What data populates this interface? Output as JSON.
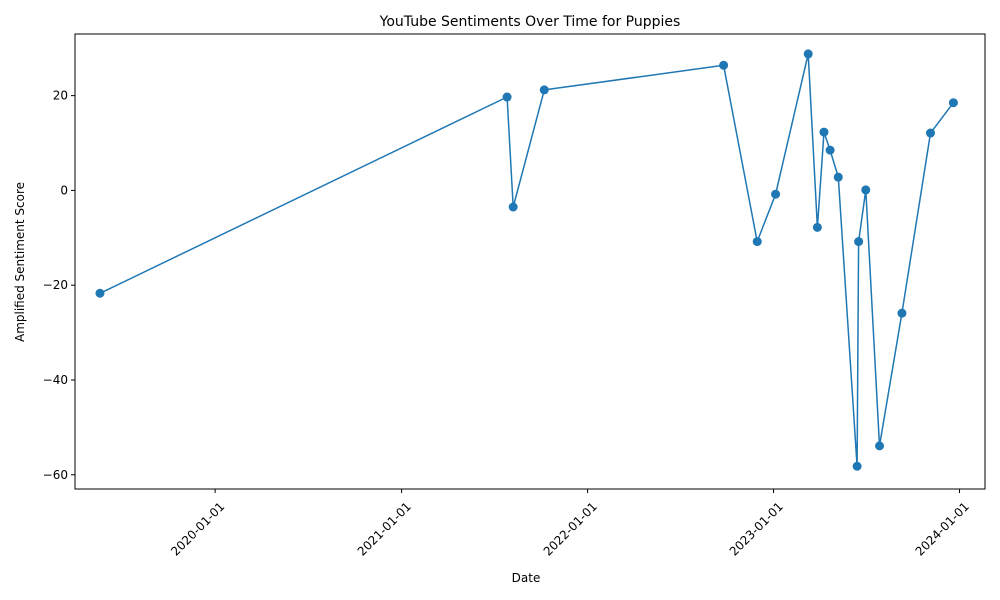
{
  "chart_data": {
    "type": "line",
    "title": "YouTube Sentiments Over Time for Puppies",
    "xlabel": "Date",
    "ylabel": "Amplified Sentiment Score",
    "xlim": [
      "2019-04-01",
      "2024-02-20"
    ],
    "ylim": [
      -63,
      33
    ],
    "x_ticks": [
      "2020-01-01",
      "2021-01-01",
      "2022-01-01",
      "2023-01-01",
      "2024-01-01"
    ],
    "y_ticks": [
      20,
      0,
      -20,
      -40,
      -60
    ],
    "y_tick_labels": [
      "20",
      "0",
      "−20",
      "−40",
      "−60"
    ],
    "grid": false,
    "line_color": "#1f77b4",
    "marker": "circle",
    "series": [
      {
        "x": [
          "2019-05-20",
          "2021-07-27",
          "2021-08-08",
          "2021-10-08",
          "2022-09-25",
          "2022-11-30",
          "2023-01-05",
          "2023-03-10",
          "2023-03-28",
          "2023-04-10",
          "2023-04-22",
          "2023-05-08",
          "2023-06-14",
          "2023-06-17",
          "2023-07-01",
          "2023-07-28",
          "2023-09-10",
          "2023-11-05",
          "2023-12-20"
        ],
        "y": [
          -21.7,
          19.7,
          -3.5,
          21.2,
          26.4,
          -10.8,
          -0.8,
          28.8,
          -7.8,
          12.3,
          8.5,
          2.8,
          -58.2,
          -10.8,
          0.1,
          -53.9,
          -25.9,
          12.1,
          18.5
        ]
      }
    ]
  }
}
